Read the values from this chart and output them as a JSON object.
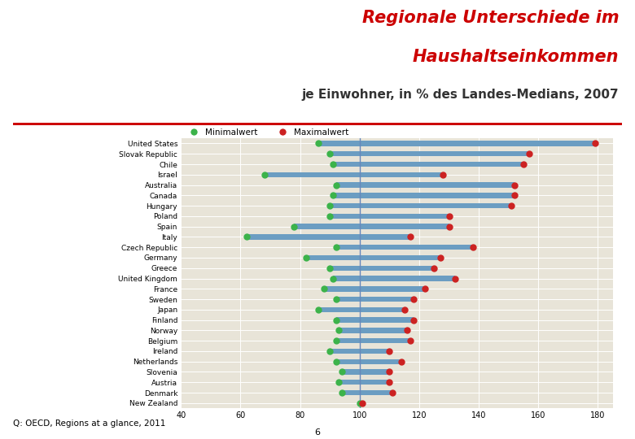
{
  "title_line1": "Regionale Unterschiede im",
  "title_line2": "Haushaltseinkommen",
  "title_line3": "je Einwohner, in % des Landes-Medians, 2007",
  "source": "Q: OECD, Regions at a glance, 2011",
  "page_number": "6",
  "legend_min": "Minimalwert",
  "legend_max": "Maximalwert",
  "countries": [
    "United States",
    "Slovak Republic",
    "Chile",
    "Israel",
    "Australia",
    "Canada",
    "Hungary",
    "Poland",
    "Spain",
    "Italy",
    "Czech Republic",
    "Germany",
    "Greece",
    "United Kingdom",
    "France",
    "Sweden",
    "Japan",
    "Finland",
    "Norway",
    "Belgium",
    "Ireland",
    "Netherlands",
    "Slovenia",
    "Austria",
    "Denmark",
    "New Zealand"
  ],
  "min_values": [
    86,
    90,
    91,
    68,
    92,
    91,
    90,
    90,
    78,
    62,
    92,
    82,
    90,
    91,
    88,
    92,
    86,
    92,
    93,
    92,
    90,
    92,
    94,
    93,
    94,
    100
  ],
  "max_values": [
    179,
    157,
    155,
    128,
    152,
    152,
    151,
    130,
    130,
    117,
    138,
    127,
    125,
    132,
    122,
    118,
    115,
    118,
    116,
    117,
    110,
    114,
    110,
    110,
    111,
    101
  ],
  "bar_color": "#6b9dc2",
  "min_color": "#3cb34a",
  "max_color": "#cc2222",
  "bg_color": "#e8e4d8",
  "grid_color": "#ffffff",
  "title_color": "#cc0000",
  "subtitle_color": "#333333",
  "xlim": [
    40,
    185
  ],
  "xticks": [
    40,
    60,
    80,
    100,
    120,
    140,
    160,
    180
  ],
  "xtick_labels": [
    "40",
    "60",
    "80",
    "100",
    "120",
    "140",
    "160",
    "180"
  ]
}
